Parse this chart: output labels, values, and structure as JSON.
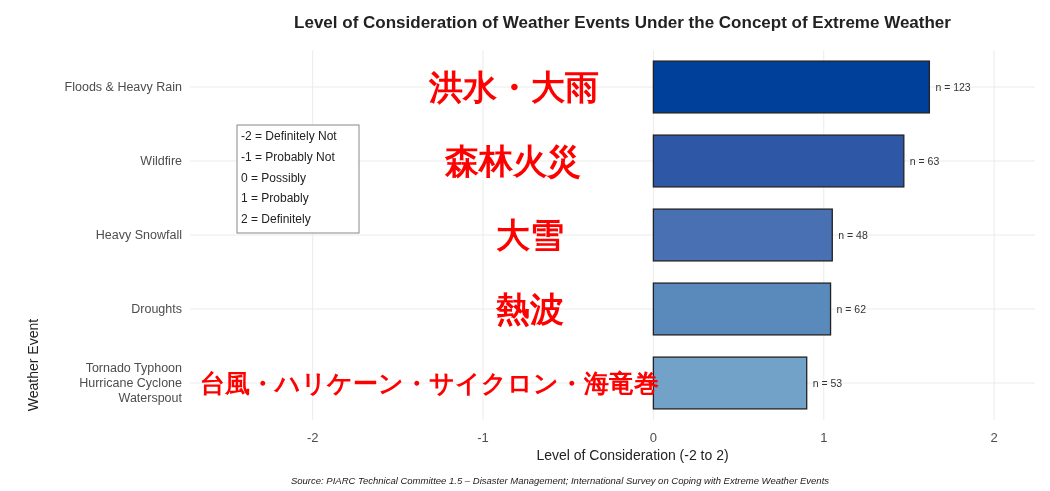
{
  "chart_data": {
    "type": "bar",
    "orientation": "horizontal",
    "title": "Level of Consideration of Weather Events Under the Concept of Extreme Weather",
    "xlabel": "Level of Consideration (-2 to 2)",
    "ylabel": "Weather Event",
    "categories": [
      "Floods & Heavy Rain",
      "Wildfire",
      "Heavy Snowfall",
      "Droughts",
      "Tornado Typhoon\nHurricane Cyclone\nWaterspout"
    ],
    "values": [
      1.62,
      1.47,
      1.05,
      1.04,
      0.9
    ],
    "colors": [
      "#003f9a",
      "#2e57a6",
      "#4870b3",
      "#5a89bb",
      "#72a2c7"
    ],
    "xlim": [
      -2.72,
      2.24
    ],
    "xticks": [
      -2,
      -1,
      0,
      1,
      2
    ],
    "grid": true,
    "annotations": [
      "-2 = Definitely Not\n-1 = Probably Not\n0 = Possibly\n1 = Probably\n2 = Definitely",
      "洪水・大雨",
      "森林火災",
      "大雪",
      "熱波",
      "台風・ハリケーン・サイクロン・海竜巻",
      {
        "text": "n = 123",
        "x": 1.62,
        "y": "Floods & Heavy Rain"
      },
      {
        "text": "n = 63",
        "x": 1.47,
        "y": "Wildfire"
      },
      {
        "text": "n = 48",
        "x": 1.05,
        "y": "Heavy Snowfall"
      },
      {
        "text": "n = 62",
        "x": 1.04,
        "y": "Droughts"
      },
      {
        "text": "n = 53",
        "x": 0.9,
        "y": "Tornado Typhoon\nHurricane Cyclone\nWaterspout"
      },
      "Source: PIARC Technical Committee 1.5 – Disaster Management; International Survey on Coping with Extreme Weather Events"
    ]
  }
}
